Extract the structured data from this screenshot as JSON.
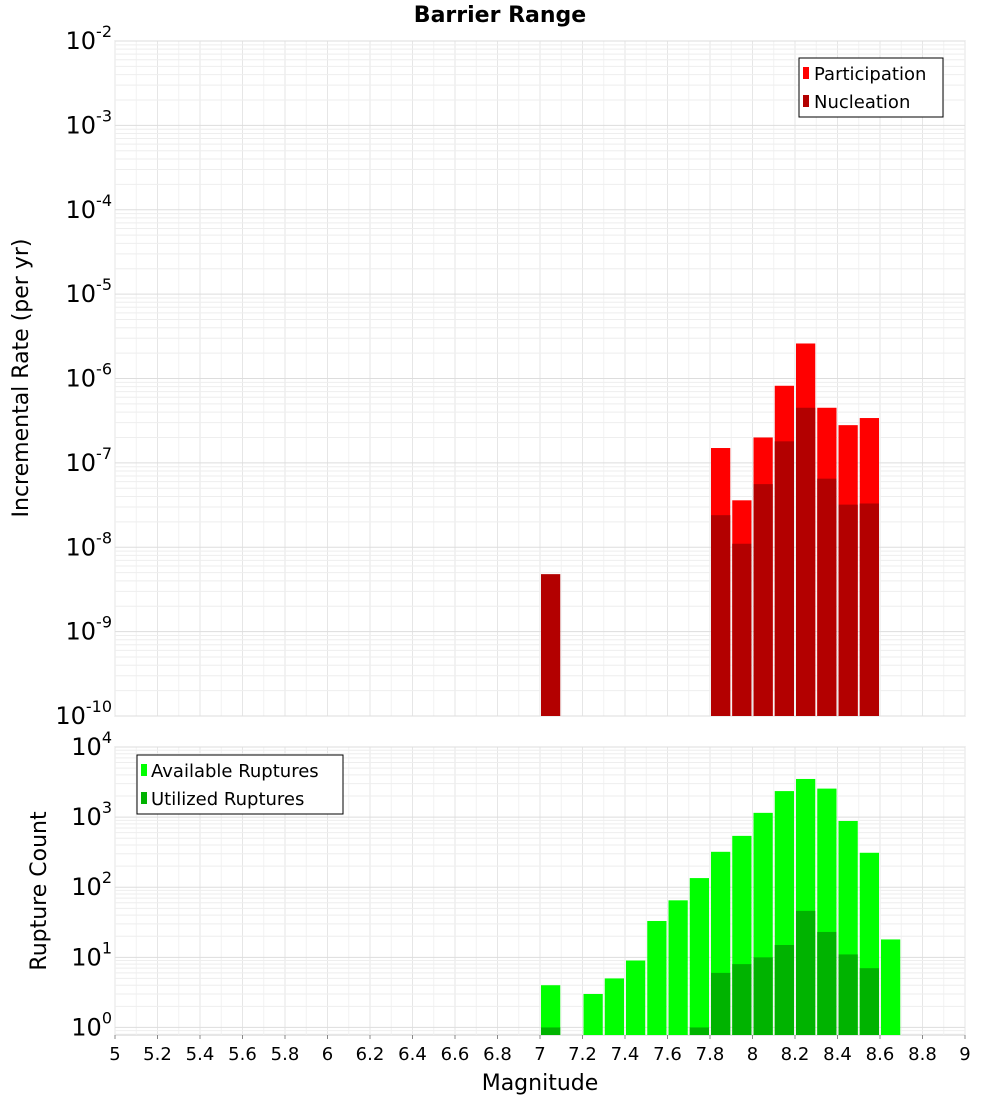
{
  "chart_data": [
    {
      "type": "bar",
      "title": "Barrier Range",
      "xlabel": "",
      "ylabel": "Incremental Rate (per yr)",
      "yscale": "log",
      "ylim": [
        1e-10,
        0.01
      ],
      "xlim": [
        5,
        9
      ],
      "bin_width": 0.1,
      "ytick_exponents": [
        "-10",
        "-9",
        "-8",
        "-7",
        "-6",
        "-5",
        "-4",
        "-3",
        "-2"
      ],
      "grid": true,
      "legend_position": "top-right",
      "series": [
        {
          "name": "Participation",
          "color": "#ff0000",
          "x": [
            7.85,
            7.95,
            8.05,
            8.15,
            8.25,
            8.35,
            8.45,
            8.55
          ],
          "values": [
            1.5e-07,
            3.6e-08,
            2e-07,
            8.2e-07,
            2.6e-06,
            4.5e-07,
            2.8e-07,
            3.4e-07
          ]
        },
        {
          "name": "Nucleation",
          "color": "#b30000",
          "x": [
            7.05,
            7.85,
            7.95,
            8.05,
            8.15,
            8.25,
            8.35,
            8.45,
            8.55
          ],
          "values": [
            4.8e-09,
            2.4e-08,
            1.1e-08,
            5.6e-08,
            1.8e-07,
            4.5e-07,
            6.5e-08,
            3.2e-08,
            3.3e-08
          ]
        }
      ]
    },
    {
      "type": "bar",
      "title": "",
      "xlabel": "Magnitude",
      "ylabel": "Rupture Count",
      "yscale": "log",
      "ylim": [
        0.78,
        10000
      ],
      "xlim": [
        5,
        9
      ],
      "bin_width": 0.1,
      "ytick_exponents": [
        "0",
        "1",
        "2",
        "3",
        "4"
      ],
      "xtick_labels": [
        "5",
        "5.2",
        "5.4",
        "5.6",
        "5.8",
        "6",
        "6.2",
        "6.4",
        "6.6",
        "6.8",
        "7",
        "7.2",
        "7.4",
        "7.6",
        "7.8",
        "8",
        "8.2",
        "8.4",
        "8.6",
        "8.8",
        "9"
      ],
      "grid": true,
      "legend_position": "top-left",
      "series": [
        {
          "name": "Available Ruptures",
          "color": "#00ff00",
          "x": [
            7.05,
            7.25,
            7.35,
            7.45,
            7.55,
            7.65,
            7.75,
            7.85,
            7.95,
            8.05,
            8.15,
            8.25,
            8.35,
            8.45,
            8.55,
            8.65
          ],
          "values": [
            4,
            3,
            5,
            9,
            33,
            65,
            135,
            320,
            540,
            1150,
            2350,
            3500,
            2550,
            880,
            310,
            18
          ]
        },
        {
          "name": "Utilized Ruptures",
          "color": "#00b300",
          "x": [
            7.05,
            7.75,
            7.85,
            7.95,
            8.05,
            8.15,
            8.25,
            8.35,
            8.45,
            8.55
          ],
          "values": [
            1,
            1,
            6,
            8,
            10,
            15,
            46,
            23,
            11,
            7
          ]
        }
      ]
    }
  ]
}
